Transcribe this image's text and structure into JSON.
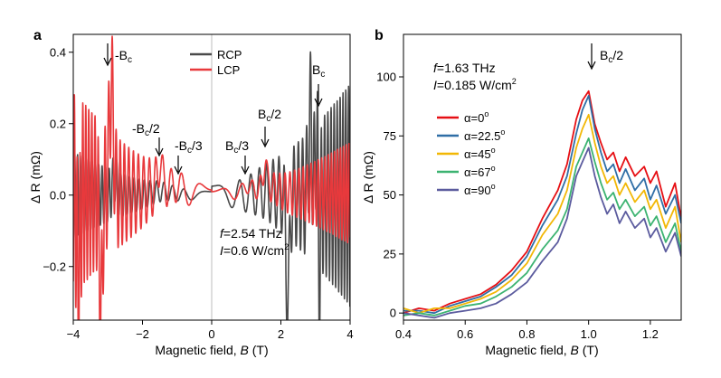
{
  "chart_data": [
    {
      "panel": "a",
      "type": "line",
      "xlabel": "Magnetic field, B (T)",
      "xlabel_main": "Magnetic field, ",
      "xlabel_var": "B",
      "xlabel_unit": " (T)",
      "ylabel": "Δ R (mΩ)",
      "xlim": [
        -4,
        4
      ],
      "ylim": [
        -0.35,
        0.45
      ],
      "xticks": [
        -4,
        -2,
        0,
        2,
        4
      ],
      "xtick_labels": [
        "−4",
        "−2",
        "0",
        "2",
        "4"
      ],
      "yticks": [
        -0.2,
        0.0,
        0.2,
        0.4
      ],
      "ytick_labels": [
        "−0.2",
        "0.0",
        "0.2",
        "0.4"
      ],
      "zero_line": true,
      "grid": false,
      "legend_position": "top-center",
      "series": [
        {
          "name": "RCP",
          "color": "#4a4a4a"
        },
        {
          "name": "LCP",
          "color": "#e8393c"
        }
      ],
      "annotations": {
        "minus_bc": "-B",
        "minus_bc2": "-B",
        "minus_bc3": "-B",
        "bc3": "B",
        "bc2": "B",
        "bc": "B",
        "sub_c": "c",
        "over2": "/2",
        "over3": "/3"
      },
      "annotation_x": {
        "minus_bc": -2.9,
        "minus_bc2": -1.5,
        "minus_bc3": -0.95,
        "bc3": 1.0,
        "bc2": 1.55,
        "bc": 3.1
      },
      "params_text": {
        "f_var": "f",
        "f_val": "=2.54 THz",
        "i_var": "I",
        "i_val": "=0.6 W/cm",
        "i_sup": "2"
      }
    },
    {
      "panel": "b",
      "type": "line",
      "xlabel": "Magnetic field, B (T)",
      "xlabel_main": "Magnetic field, ",
      "xlabel_var": "B",
      "xlabel_unit": " (T)",
      "ylabel": "Δ R (mΩ)",
      "xlim": [
        0.4,
        1.3
      ],
      "ylim": [
        -3,
        118
      ],
      "xticks": [
        0.4,
        0.6,
        0.8,
        1.0,
        1.2
      ],
      "xtick_labels": [
        "0.4",
        "0.6",
        "0.8",
        "1.0",
        "1.2"
      ],
      "yticks": [
        0,
        25,
        50,
        75,
        100
      ],
      "ytick_labels": [
        "0",
        "25",
        "50",
        "75",
        "100"
      ],
      "grid": false,
      "legend_position": "center-left",
      "x": [
        0.4,
        0.45,
        0.5,
        0.55,
        0.6,
        0.65,
        0.7,
        0.75,
        0.8,
        0.85,
        0.9,
        0.93,
        0.96,
        0.98,
        1.0,
        1.02,
        1.04,
        1.06,
        1.08,
        1.1,
        1.12,
        1.15,
        1.18,
        1.2,
        1.22,
        1.25,
        1.28,
        1.3
      ],
      "series": [
        {
          "name": "α=0°",
          "label_prefix": "α=0",
          "color": "#e60f14",
          "values": [
            0,
            2,
            1,
            4,
            6,
            8,
            12,
            18,
            26,
            40,
            52,
            63,
            82,
            90,
            94,
            80,
            72,
            65,
            68,
            60,
            66,
            58,
            62,
            55,
            60,
            45,
            55,
            40
          ]
        },
        {
          "name": "α=22.5°",
          "label_prefix": "α=22.5",
          "color": "#2f6ea6",
          "values": [
            1,
            1,
            0,
            3,
            5,
            7,
            11,
            16,
            24,
            37,
            48,
            58,
            76,
            86,
            92,
            78,
            68,
            60,
            63,
            55,
            61,
            52,
            57,
            48,
            54,
            42,
            50,
            38
          ]
        },
        {
          "name": "α=45°",
          "label_prefix": "α=45",
          "color": "#f2b705",
          "values": [
            2,
            0,
            2,
            2,
            4,
            6,
            9,
            14,
            21,
            33,
            42,
            52,
            70,
            78,
            84,
            72,
            62,
            55,
            58,
            50,
            55,
            47,
            52,
            44,
            48,
            36,
            45,
            30
          ]
        },
        {
          "name": "α=67°",
          "label_prefix": "α=67",
          "color": "#3cb371",
          "values": [
            -1,
            0,
            -1,
            1,
            3,
            4,
            7,
            11,
            17,
            27,
            35,
            44,
            62,
            68,
            74,
            64,
            55,
            48,
            51,
            44,
            48,
            41,
            45,
            37,
            41,
            30,
            38,
            26
          ]
        },
        {
          "name": "α=90°",
          "label_prefix": "α=90",
          "color": "#5b5b9e",
          "values": [
            0,
            -1,
            -2,
            0,
            1,
            2,
            4,
            8,
            13,
            22,
            30,
            40,
            58,
            64,
            70,
            58,
            49,
            42,
            46,
            38,
            43,
            36,
            40,
            32,
            36,
            26,
            34,
            24
          ]
        }
      ],
      "annotations": {
        "bc2": "B",
        "sub_c": "c",
        "over2": "/2"
      },
      "annotation_x": {
        "bc2": 1.0
      },
      "params_text": {
        "f_var": "f",
        "f_val": "=1.63 THz",
        "i_var": "I",
        "i_val": "=0.185 W/cm",
        "i_sup": "2"
      },
      "degree_sup": "o"
    }
  ]
}
